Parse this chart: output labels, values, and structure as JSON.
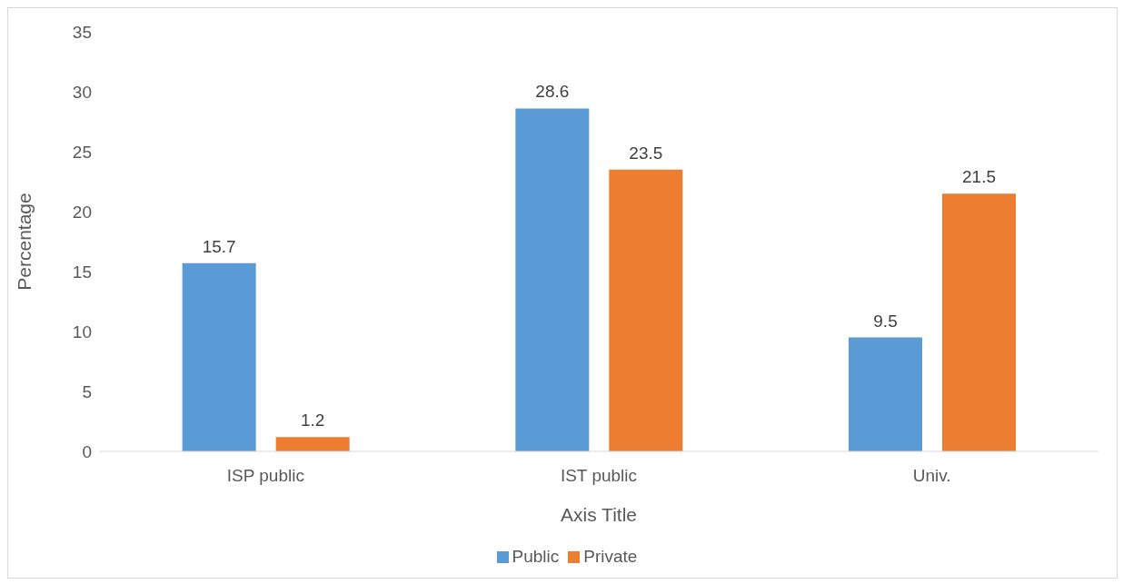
{
  "chart_data": {
    "type": "bar",
    "xlabel": "Axis Title",
    "ylabel": "Percentage",
    "categories": [
      "ISP public",
      "IST public",
      "Univ."
    ],
    "series": [
      {
        "name": "Public",
        "color": "#5b9bd5",
        "values": [
          15.7,
          28.6,
          9.5
        ]
      },
      {
        "name": "Private",
        "color": "#ed7d31",
        "values": [
          1.2,
          23.5,
          21.5
        ]
      }
    ],
    "ylim": [
      0,
      35
    ],
    "yticks": [
      0,
      5,
      10,
      15,
      20,
      25,
      30,
      35
    ],
    "grid": false,
    "data_labels": true,
    "legend": "bottom"
  }
}
